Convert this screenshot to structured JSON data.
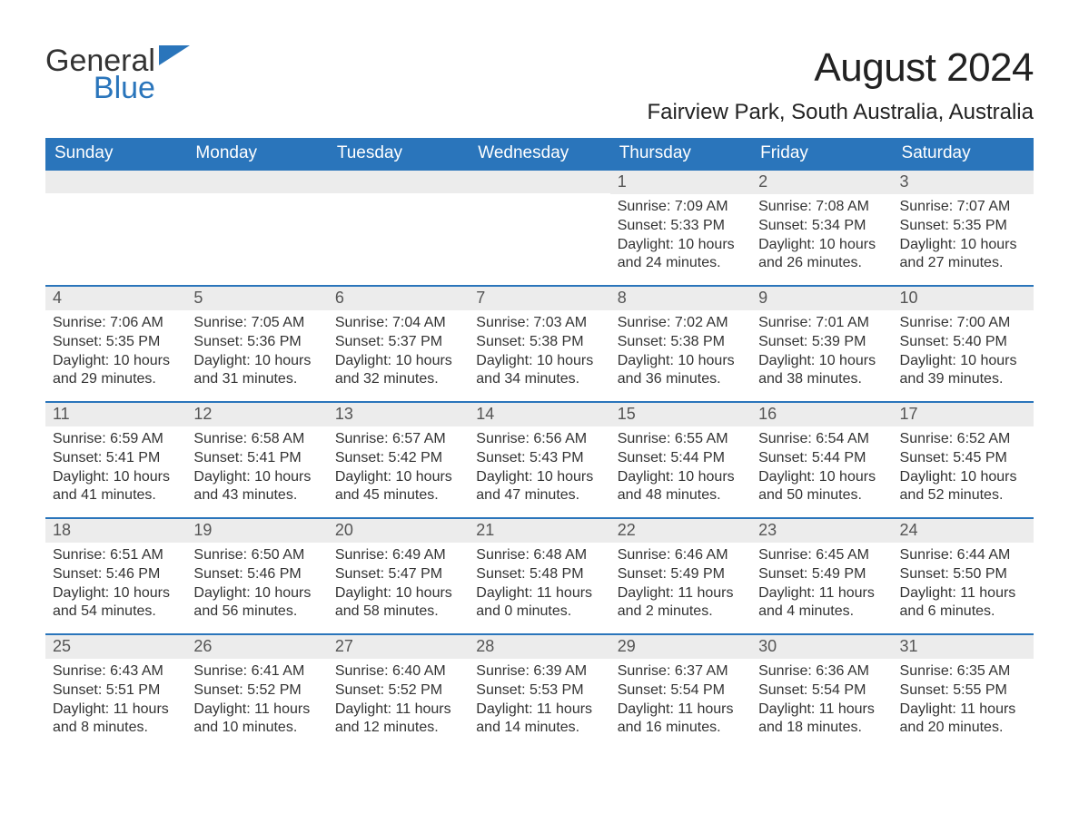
{
  "logo": {
    "word1": "General",
    "word2": "Blue",
    "accent_color": "#2a75bb"
  },
  "title": "August 2024",
  "location": "Fairview Park, South Australia, Australia",
  "day_headers": [
    "Sunday",
    "Monday",
    "Tuesday",
    "Wednesday",
    "Thursday",
    "Friday",
    "Saturday"
  ],
  "colors": {
    "header_bg": "#2a75bb",
    "header_text": "#ffffff",
    "daybar_bg": "#ececec",
    "daybar_border": "#2a75bb",
    "body_bg": "#ffffff",
    "text": "#333333"
  },
  "weeks": [
    [
      null,
      null,
      null,
      null,
      {
        "n": "1",
        "sunrise": "Sunrise: 7:09 AM",
        "sunset": "Sunset: 5:33 PM",
        "daylight": "Daylight: 10 hours and 24 minutes."
      },
      {
        "n": "2",
        "sunrise": "Sunrise: 7:08 AM",
        "sunset": "Sunset: 5:34 PM",
        "daylight": "Daylight: 10 hours and 26 minutes."
      },
      {
        "n": "3",
        "sunrise": "Sunrise: 7:07 AM",
        "sunset": "Sunset: 5:35 PM",
        "daylight": "Daylight: 10 hours and 27 minutes."
      }
    ],
    [
      {
        "n": "4",
        "sunrise": "Sunrise: 7:06 AM",
        "sunset": "Sunset: 5:35 PM",
        "daylight": "Daylight: 10 hours and 29 minutes."
      },
      {
        "n": "5",
        "sunrise": "Sunrise: 7:05 AM",
        "sunset": "Sunset: 5:36 PM",
        "daylight": "Daylight: 10 hours and 31 minutes."
      },
      {
        "n": "6",
        "sunrise": "Sunrise: 7:04 AM",
        "sunset": "Sunset: 5:37 PM",
        "daylight": "Daylight: 10 hours and 32 minutes."
      },
      {
        "n": "7",
        "sunrise": "Sunrise: 7:03 AM",
        "sunset": "Sunset: 5:38 PM",
        "daylight": "Daylight: 10 hours and 34 minutes."
      },
      {
        "n": "8",
        "sunrise": "Sunrise: 7:02 AM",
        "sunset": "Sunset: 5:38 PM",
        "daylight": "Daylight: 10 hours and 36 minutes."
      },
      {
        "n": "9",
        "sunrise": "Sunrise: 7:01 AM",
        "sunset": "Sunset: 5:39 PM",
        "daylight": "Daylight: 10 hours and 38 minutes."
      },
      {
        "n": "10",
        "sunrise": "Sunrise: 7:00 AM",
        "sunset": "Sunset: 5:40 PM",
        "daylight": "Daylight: 10 hours and 39 minutes."
      }
    ],
    [
      {
        "n": "11",
        "sunrise": "Sunrise: 6:59 AM",
        "sunset": "Sunset: 5:41 PM",
        "daylight": "Daylight: 10 hours and 41 minutes."
      },
      {
        "n": "12",
        "sunrise": "Sunrise: 6:58 AM",
        "sunset": "Sunset: 5:41 PM",
        "daylight": "Daylight: 10 hours and 43 minutes."
      },
      {
        "n": "13",
        "sunrise": "Sunrise: 6:57 AM",
        "sunset": "Sunset: 5:42 PM",
        "daylight": "Daylight: 10 hours and 45 minutes."
      },
      {
        "n": "14",
        "sunrise": "Sunrise: 6:56 AM",
        "sunset": "Sunset: 5:43 PM",
        "daylight": "Daylight: 10 hours and 47 minutes."
      },
      {
        "n": "15",
        "sunrise": "Sunrise: 6:55 AM",
        "sunset": "Sunset: 5:44 PM",
        "daylight": "Daylight: 10 hours and 48 minutes."
      },
      {
        "n": "16",
        "sunrise": "Sunrise: 6:54 AM",
        "sunset": "Sunset: 5:44 PM",
        "daylight": "Daylight: 10 hours and 50 minutes."
      },
      {
        "n": "17",
        "sunrise": "Sunrise: 6:52 AM",
        "sunset": "Sunset: 5:45 PM",
        "daylight": "Daylight: 10 hours and 52 minutes."
      }
    ],
    [
      {
        "n": "18",
        "sunrise": "Sunrise: 6:51 AM",
        "sunset": "Sunset: 5:46 PM",
        "daylight": "Daylight: 10 hours and 54 minutes."
      },
      {
        "n": "19",
        "sunrise": "Sunrise: 6:50 AM",
        "sunset": "Sunset: 5:46 PM",
        "daylight": "Daylight: 10 hours and 56 minutes."
      },
      {
        "n": "20",
        "sunrise": "Sunrise: 6:49 AM",
        "sunset": "Sunset: 5:47 PM",
        "daylight": "Daylight: 10 hours and 58 minutes."
      },
      {
        "n": "21",
        "sunrise": "Sunrise: 6:48 AM",
        "sunset": "Sunset: 5:48 PM",
        "daylight": "Daylight: 11 hours and 0 minutes."
      },
      {
        "n": "22",
        "sunrise": "Sunrise: 6:46 AM",
        "sunset": "Sunset: 5:49 PM",
        "daylight": "Daylight: 11 hours and 2 minutes."
      },
      {
        "n": "23",
        "sunrise": "Sunrise: 6:45 AM",
        "sunset": "Sunset: 5:49 PM",
        "daylight": "Daylight: 11 hours and 4 minutes."
      },
      {
        "n": "24",
        "sunrise": "Sunrise: 6:44 AM",
        "sunset": "Sunset: 5:50 PM",
        "daylight": "Daylight: 11 hours and 6 minutes."
      }
    ],
    [
      {
        "n": "25",
        "sunrise": "Sunrise: 6:43 AM",
        "sunset": "Sunset: 5:51 PM",
        "daylight": "Daylight: 11 hours and 8 minutes."
      },
      {
        "n": "26",
        "sunrise": "Sunrise: 6:41 AM",
        "sunset": "Sunset: 5:52 PM",
        "daylight": "Daylight: 11 hours and 10 minutes."
      },
      {
        "n": "27",
        "sunrise": "Sunrise: 6:40 AM",
        "sunset": "Sunset: 5:52 PM",
        "daylight": "Daylight: 11 hours and 12 minutes."
      },
      {
        "n": "28",
        "sunrise": "Sunrise: 6:39 AM",
        "sunset": "Sunset: 5:53 PM",
        "daylight": "Daylight: 11 hours and 14 minutes."
      },
      {
        "n": "29",
        "sunrise": "Sunrise: 6:37 AM",
        "sunset": "Sunset: 5:54 PM",
        "daylight": "Daylight: 11 hours and 16 minutes."
      },
      {
        "n": "30",
        "sunrise": "Sunrise: 6:36 AM",
        "sunset": "Sunset: 5:54 PM",
        "daylight": "Daylight: 11 hours and 18 minutes."
      },
      {
        "n": "31",
        "sunrise": "Sunrise: 6:35 AM",
        "sunset": "Sunset: 5:55 PM",
        "daylight": "Daylight: 11 hours and 20 minutes."
      }
    ]
  ]
}
